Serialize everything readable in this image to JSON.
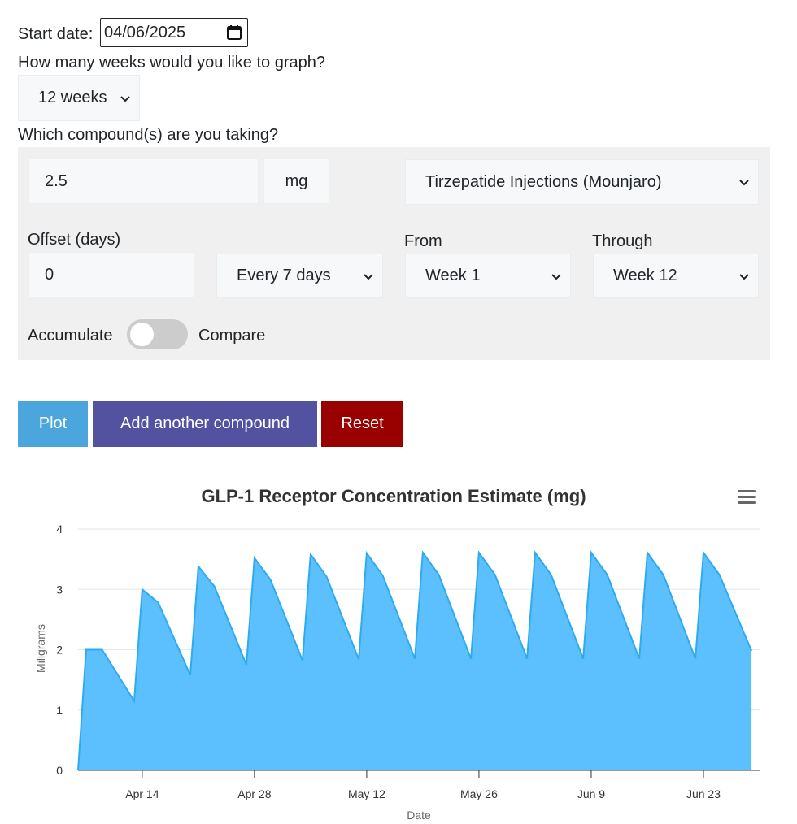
{
  "form": {
    "start_date_label": "Start date:",
    "start_date_value": "04/06/2025",
    "weeks_label": "How many weeks would you like to graph?",
    "weeks_value": "12 weeks",
    "compound_label": "Which compound(s) are you taking?",
    "dose_value": "2.5",
    "unit": "mg",
    "compound_value": "Tirzepatide Injections (Mounjaro)",
    "offset_label": "Offset (days)",
    "offset_value": "0",
    "frequency_value": "Every 7 days",
    "from_label": "From",
    "from_value": "Week 1",
    "through_label": "Through",
    "through_value": "Week 12",
    "accumulate_label": "Accumulate",
    "compare_label": "Compare",
    "compare_enabled": false
  },
  "buttons": {
    "plot": "Plot",
    "add_compound": "Add another compound",
    "reset": "Reset"
  },
  "colors": {
    "plot": "#4aa6dd",
    "add_compound": "#5252a0",
    "reset": "#990000",
    "series_fill": "#5cc0ff",
    "series_line": "#2eaaf0"
  },
  "icons": {
    "calendar": "calendar-icon",
    "chevron": "chevron-down-icon",
    "menu": "hamburger-menu-icon"
  },
  "chart_data": {
    "type": "area",
    "title": "GLP-1 Receptor Concentration Estimate (mg)",
    "xlabel": "Date",
    "ylabel": "Miligrams",
    "ylim": [
      0,
      4
    ],
    "yticks": [
      0,
      1,
      2,
      3,
      4
    ],
    "xlim": [
      "2025-04-06",
      "2025-06-30"
    ],
    "xticks": [
      {
        "date": "2025-04-14",
        "label": "Apr 14"
      },
      {
        "date": "2025-04-28",
        "label": "Apr 28"
      },
      {
        "date": "2025-05-12",
        "label": "May 12"
      },
      {
        "date": "2025-05-26",
        "label": "May 26"
      },
      {
        "date": "2025-06-09",
        "label": "Jun 9"
      },
      {
        "date": "2025-06-23",
        "label": "Jun 23"
      }
    ],
    "grid": true,
    "legend": "none",
    "series": [
      {
        "points": [
          [
            "2025-04-06",
            0
          ],
          [
            "2025-04-07",
            2.0
          ],
          [
            "2025-04-09",
            2.0
          ],
          [
            "2025-04-13",
            1.15
          ],
          [
            "2025-04-14",
            3.0
          ],
          [
            "2025-04-16",
            2.78
          ],
          [
            "2025-04-20",
            1.58
          ],
          [
            "2025-04-21",
            3.38
          ],
          [
            "2025-04-23",
            3.05
          ],
          [
            "2025-04-27",
            1.75
          ],
          [
            "2025-04-28",
            3.52
          ],
          [
            "2025-04-30",
            3.16
          ],
          [
            "2025-05-04",
            1.82
          ],
          [
            "2025-05-05",
            3.58
          ],
          [
            "2025-05-07",
            3.21
          ],
          [
            "2025-05-11",
            1.84
          ],
          [
            "2025-05-12",
            3.6
          ],
          [
            "2025-05-14",
            3.23
          ],
          [
            "2025-05-18",
            1.85
          ],
          [
            "2025-05-19",
            3.61
          ],
          [
            "2025-05-21",
            3.24
          ],
          [
            "2025-05-25",
            1.85
          ],
          [
            "2025-05-26",
            3.61
          ],
          [
            "2025-05-28",
            3.24
          ],
          [
            "2025-06-01",
            1.85
          ],
          [
            "2025-06-02",
            3.61
          ],
          [
            "2025-06-04",
            3.24
          ],
          [
            "2025-06-08",
            1.85
          ],
          [
            "2025-06-09",
            3.61
          ],
          [
            "2025-06-11",
            3.24
          ],
          [
            "2025-06-15",
            1.85
          ],
          [
            "2025-06-16",
            3.61
          ],
          [
            "2025-06-18",
            3.24
          ],
          [
            "2025-06-22",
            1.85
          ],
          [
            "2025-06-23",
            3.61
          ],
          [
            "2025-06-25",
            3.24
          ],
          [
            "2025-06-29",
            1.98
          ]
        ]
      }
    ]
  }
}
